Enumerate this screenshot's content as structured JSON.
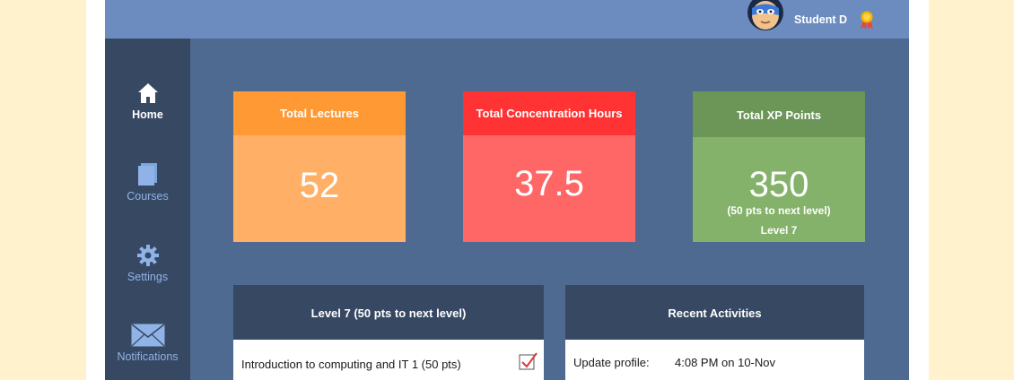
{
  "header": {
    "user_name": "Student D",
    "avatar_icon": "superhero-avatar-icon",
    "badge_icon": "award-ribbon-icon"
  },
  "sidebar": {
    "items": [
      {
        "label": "Home",
        "icon": "home-icon",
        "active": true
      },
      {
        "label": "Courses",
        "icon": "courses-icon",
        "active": false
      },
      {
        "label": "Settings",
        "icon": "gear-icon",
        "active": false
      },
      {
        "label": "Notifications",
        "icon": "envelope-icon",
        "active": false
      }
    ]
  },
  "stats": {
    "lectures": {
      "title": "Total Lectures",
      "value": "52",
      "color_head": "#ff9933",
      "color_body": "#ffb066"
    },
    "hours": {
      "title": "Total Concentration Hours",
      "value": "37.5",
      "color_head": "#ff3333",
      "color_body": "#ff6666"
    },
    "xp": {
      "title": "Total XP Points",
      "value": "350",
      "next_level": "(50 pts to next level)",
      "level": "Level 7",
      "color_head": "#6b9657",
      "color_body": "#85b26a"
    }
  },
  "level_panel": {
    "title": "Level 7 (50 pts to next level)",
    "items": [
      {
        "text": "Introduction to computing and IT 1 (50 pts)",
        "completed": true
      }
    ]
  },
  "activities_panel": {
    "title": "Recent Activities",
    "items": [
      {
        "action": "Update profile:",
        "time": "4:08 PM on 10-Nov"
      }
    ]
  }
}
